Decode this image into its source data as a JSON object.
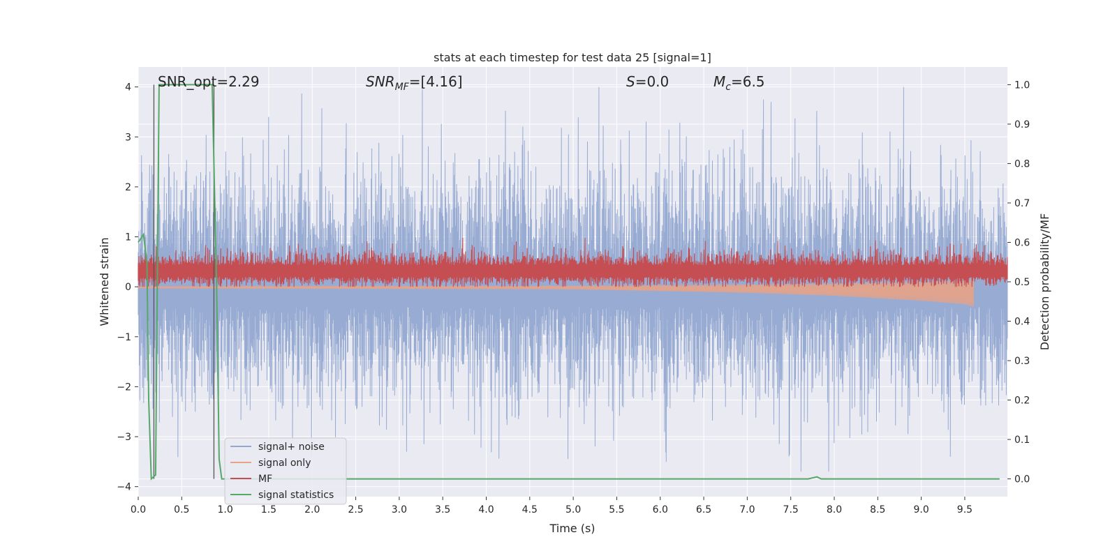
{
  "chart_data": {
    "type": "line",
    "title": "stats at each timestep for test data 25 [signal=1]",
    "xlabel": "Time (s)",
    "ylabel_left": "Whitened strain",
    "ylabel_right": "Detection probability/MF",
    "xlim": [
      0.0,
      9.99
    ],
    "ylim_left": [
      -4.2,
      4.4
    ],
    "ylim_right": [
      -0.045,
      1.045
    ],
    "grid": true,
    "legend_position": "lower-left",
    "x_ticks": [
      "0.0",
      "0.5",
      "1.0",
      "1.5",
      "2.0",
      "2.5",
      "3.0",
      "3.5",
      "4.0",
      "4.5",
      "5.0",
      "5.5",
      "6.0",
      "6.5",
      "7.0",
      "7.5",
      "8.0",
      "8.5",
      "9.0",
      "9.5"
    ],
    "y_left_ticks": [
      "4",
      "3",
      "2",
      "1",
      "0",
      "−1",
      "−2",
      "−3",
      "−4"
    ],
    "y_right_ticks": [
      "1.0",
      "0.9",
      "0.8",
      "0.7",
      "0.6",
      "0.5",
      "0.4",
      "0.3",
      "0.2",
      "0.1",
      "0.0"
    ],
    "annotations": {
      "snr_opt": "SNR_opt=2.29",
      "snr_mf_label": "SNR",
      "snr_mf_sub": "MF",
      "snr_mf_value": "=[4.16]",
      "s_label": "S",
      "s_value": "=0.0",
      "mc_label": "M",
      "mc_sub": "c",
      "mc_value": "=6.5"
    },
    "vertical_markers": [
      0.18,
      0.87
    ],
    "series": [
      {
        "name": "signal+ noise",
        "color": "#92a8d1",
        "axis": "left",
        "kind": "noise",
        "sigma": 1.0,
        "x_range": [
          0.0,
          9.99
        ]
      },
      {
        "name": "signal only",
        "color": "#e8a285",
        "axis": "left",
        "kind": "chirp",
        "envelope": [
          [
            0.0,
            0.03
          ],
          [
            5.0,
            0.05
          ],
          [
            7.0,
            0.12
          ],
          [
            8.0,
            0.18
          ],
          [
            9.0,
            0.28
          ],
          [
            9.5,
            0.35
          ],
          [
            9.6,
            0.4
          ]
        ]
      },
      {
        "name": "MF",
        "color": "#c44e52",
        "axis": "left",
        "kind": "mf",
        "base": 0.25
      },
      {
        "name": "signal statistics",
        "color": "#55a868",
        "axis": "right",
        "x": [
          0.0,
          0.06,
          0.1,
          0.12,
          0.15,
          0.2,
          0.24,
          0.3,
          0.5,
          0.7,
          0.85,
          0.9,
          0.93,
          0.96,
          1.0,
          7.6,
          7.7,
          7.8,
          7.85,
          7.9,
          9.9
        ],
        "y": [
          0.6,
          0.62,
          0.55,
          0.2,
          0.0,
          0.01,
          1.0,
          1.0,
          1.0,
          1.0,
          1.0,
          0.5,
          0.05,
          0.0,
          0.0,
          0.0,
          0.0,
          0.005,
          0.0,
          0.0,
          0.0
        ]
      }
    ],
    "colors": {
      "plot_bg": "#eaeaf2",
      "grid": "#ffffff",
      "marker_line": "#555555"
    }
  }
}
